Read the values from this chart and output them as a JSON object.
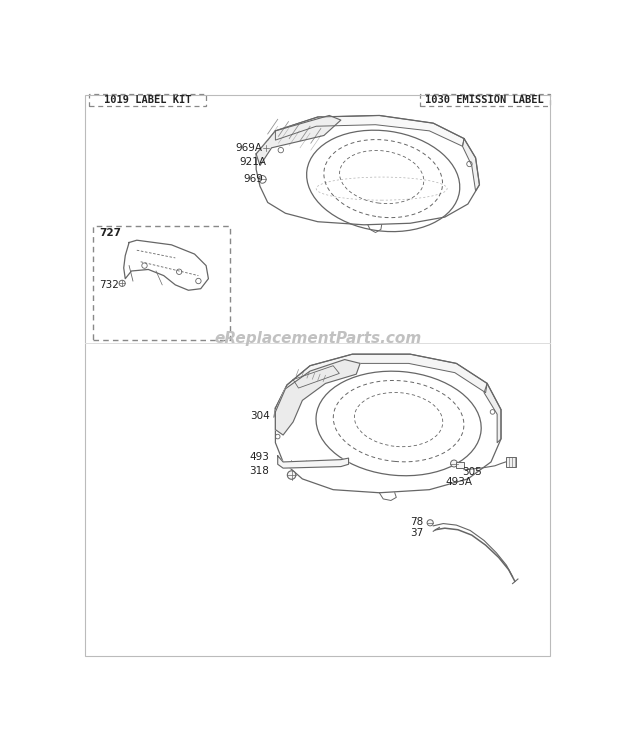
{
  "bg_color": "#ffffff",
  "label_left": "1019 LABEL KIT",
  "label_right": "1030 EMISSION LABEL",
  "watermark": "eReplacementParts.com",
  "line_color": "#666666",
  "text_color": "#222222",
  "watermark_color": "#bbbbbb",
  "parts_top": {
    "969A": "969A",
    "921A": "921A",
    "969": "969"
  },
  "parts_bottom": {
    "493A": "493A",
    "304": "304",
    "493": "493",
    "318": "318",
    "305": "305",
    "78": "78",
    "37": "37"
  },
  "parts_inset": {
    "727": "727",
    "732": "732"
  }
}
